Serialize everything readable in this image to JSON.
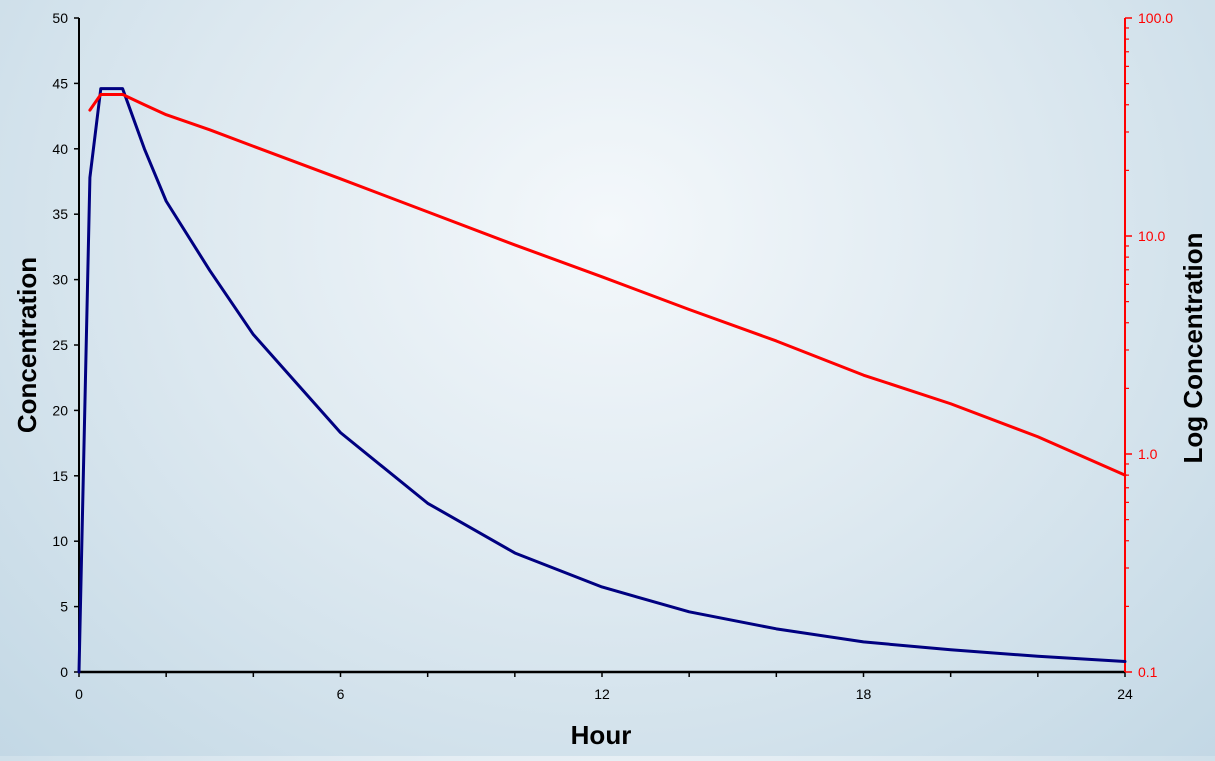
{
  "chart_data": {
    "type": "line",
    "xlabel": "Hour",
    "ylabel": "Concentration",
    "y2label": "Log Concentration",
    "xlim": [
      0,
      24
    ],
    "ylim": [
      0,
      50
    ],
    "y2lim": [
      0.1,
      100
    ],
    "y2scale": "log",
    "grid": false,
    "legend": "none",
    "x_ticks": [
      "0",
      "6",
      "12",
      "18",
      "24"
    ],
    "y_ticks": [
      "0",
      "5",
      "10",
      "15",
      "20",
      "25",
      "30",
      "35",
      "40",
      "45",
      "50"
    ],
    "y2_ticks": [
      "0.1",
      "1.0",
      "10.0",
      "100.0"
    ],
    "colors": {
      "left_series": "#000080",
      "right_series": "#ff0000",
      "right_axis": "#ff0000"
    },
    "series": [
      {
        "axis": "left",
        "x": [
          0,
          0.25,
          0.5,
          0.75,
          1,
          1.5,
          2,
          3,
          4,
          6,
          8,
          10,
          12,
          14,
          16,
          18,
          20,
          22,
          24
        ],
        "y": [
          0,
          37.8,
          44.6,
          44.6,
          44.6,
          40,
          36,
          30.7,
          25.8,
          18.3,
          12.9,
          9.1,
          6.5,
          4.6,
          3.3,
          2.3,
          1.7,
          1.2,
          0.8
        ]
      },
      {
        "axis": "right",
        "x": [
          0.25,
          0.5,
          0.75,
          1,
          1.5,
          2,
          3,
          4,
          6,
          8,
          10,
          12,
          14,
          16,
          18,
          20,
          22,
          24
        ],
        "y": [
          37.8,
          44.6,
          44.6,
          44.6,
          40,
          36,
          30.7,
          25.8,
          18.3,
          12.9,
          9.1,
          6.5,
          4.6,
          3.3,
          2.3,
          1.7,
          1.2,
          0.8
        ]
      }
    ]
  }
}
